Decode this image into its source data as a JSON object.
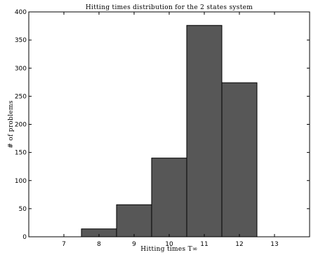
{
  "chart_data": {
    "type": "bar",
    "title": "Hitting times distribution for the 2 states system",
    "xlabel": "Hitting times T∞",
    "ylabel": "# of problems",
    "categories": [
      "7",
      "8",
      "9",
      "10",
      "11",
      "12",
      "13"
    ],
    "values": [
      0,
      14,
      57,
      140,
      376,
      274,
      0
    ],
    "xlim": [
      6,
      14
    ],
    "ylim": [
      0,
      400
    ],
    "yticks": [
      0,
      50,
      100,
      150,
      200,
      250,
      300,
      350,
      400
    ],
    "grid": false,
    "bar_color": "#575757",
    "edge_color": "#000000"
  }
}
